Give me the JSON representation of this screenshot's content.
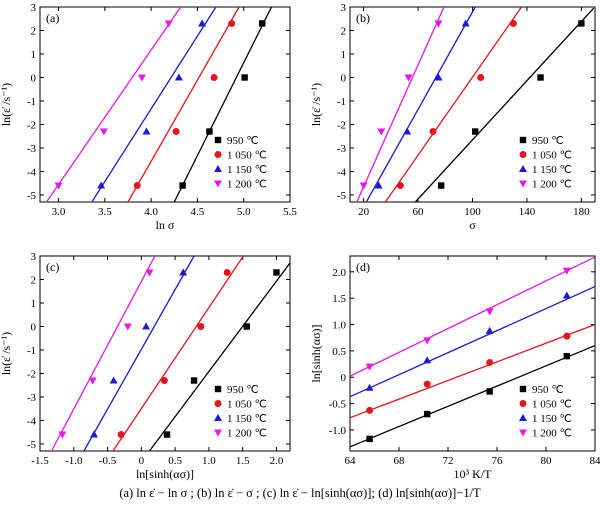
{
  "caption": "(a)  ln ε̇ − ln σ ; (b)  ln ε̇ − σ ; (c)  ln ε̇ − ln[sinh(ασ)]; (d)  ln[sinh(ασ)]−1/T",
  "colors": {
    "950": "#000000",
    "1050": "#e8141c",
    "1150": "#1a1ad6",
    "1200": "#e817e8"
  },
  "chart_data": [
    {
      "panel": "(a)",
      "type": "scatter",
      "xlabel": "ln σ",
      "ylabel": "ln(ε̇ /s⁻¹)",
      "xlim": [
        2.8,
        5.5
      ],
      "ylim": [
        -5.3,
        3.0
      ],
      "xticks": [
        "3.0",
        "3.5",
        "4.0",
        "4.5",
        "5.0",
        "5.5"
      ],
      "xtick_values": [
        3.0,
        3.5,
        4.0,
        4.5,
        5.0,
        5.5
      ],
      "yticks": [
        "-5",
        "-4",
        "-3",
        "-2",
        "-1",
        "0",
        "1",
        "2",
        "3"
      ],
      "ytick_values": [
        -5,
        -4,
        -3,
        -2,
        -1,
        0,
        1,
        2,
        3
      ],
      "legend": "bottom-right",
      "series": [
        {
          "name": "950 ℃",
          "marker": "square",
          "color": "#000000",
          "x": [
            4.34,
            4.63,
            5.01,
            5.2
          ],
          "y": [
            -4.6,
            -2.3,
            0.0,
            2.3
          ],
          "fit": [
            [
              4.25,
              -5.3
            ],
            [
              5.3,
              3.0
            ]
          ]
        },
        {
          "name": "1 050 ℃",
          "marker": "circle",
          "color": "#e8141c",
          "x": [
            3.85,
            4.27,
            4.68,
            4.87
          ],
          "y": [
            -4.6,
            -2.3,
            0.0,
            2.3
          ],
          "fit": [
            [
              3.75,
              -5.3
            ],
            [
              4.95,
              3.0
            ]
          ]
        },
        {
          "name": "1 150 ℃",
          "marker": "triangle-up",
          "color": "#1a1ad6",
          "x": [
            3.46,
            3.95,
            4.3,
            4.55
          ],
          "y": [
            -4.6,
            -2.3,
            0.0,
            2.3
          ],
          "fit": [
            [
              3.36,
              -5.3
            ],
            [
              4.7,
              3.0
            ]
          ]
        },
        {
          "name": "1 200 ℃",
          "marker": "triangle-down",
          "color": "#e817e8",
          "x": [
            3.0,
            3.49,
            3.9,
            4.19
          ],
          "y": [
            -4.6,
            -2.3,
            0.0,
            2.3
          ],
          "fit": [
            [
              2.87,
              -5.3
            ],
            [
              4.32,
              3.0
            ]
          ]
        }
      ]
    },
    {
      "panel": "(b)",
      "type": "scatter",
      "xlabel": "σ",
      "ylabel": "ln(ε̇ /s⁻¹)",
      "xlim": [
        10,
        190
      ],
      "ylim": [
        -5.3,
        3.0
      ],
      "xticks": [
        "20",
        "60",
        "100",
        "140",
        "180"
      ],
      "xtick_values": [
        20,
        60,
        100,
        140,
        180
      ],
      "yticks": [
        "-5",
        "-4",
        "-3",
        "-2",
        "-1",
        "0",
        "1",
        "2",
        "3"
      ],
      "ytick_values": [
        -5,
        -4,
        -3,
        -2,
        -1,
        0,
        1,
        2,
        3
      ],
      "legend": "bottom-right",
      "series": [
        {
          "name": "950 ℃",
          "marker": "square",
          "color": "#000000",
          "x": [
            77,
            102,
            150,
            180
          ],
          "y": [
            -4.6,
            -2.3,
            0.0,
            2.3
          ],
          "fit": [
            [
              58,
              -5.3
            ],
            [
              189,
              2.95
            ]
          ]
        },
        {
          "name": "1 050 ℃",
          "marker": "circle",
          "color": "#e8141c",
          "x": [
            47,
            71,
            106,
            130
          ],
          "y": [
            -4.6,
            -2.3,
            0.0,
            2.3
          ],
          "fit": [
            [
              36,
              -5.3
            ],
            [
              136,
              3.0
            ]
          ]
        },
        {
          "name": "1 150 ℃",
          "marker": "triangle-up",
          "color": "#1a1ad6",
          "x": [
            31,
            52,
            75,
            95
          ],
          "y": [
            -4.6,
            -2.3,
            0.0,
            2.3
          ],
          "fit": [
            [
              22,
              -5.3
            ],
            [
              102,
              3.0
            ]
          ]
        },
        {
          "name": "1 200 ℃",
          "marker": "triangle-down",
          "color": "#e817e8",
          "x": [
            20,
            33,
            53,
            75
          ],
          "y": [
            -4.6,
            -2.3,
            0.0,
            2.3
          ],
          "fit": [
            [
              15,
              -5.3
            ],
            [
              79,
              3.0
            ]
          ]
        }
      ]
    },
    {
      "panel": "(c)",
      "type": "scatter",
      "xlabel": "ln[sinh(ασ)]",
      "ylabel": "ln(ε̇ /s⁻¹)",
      "xlim": [
        -1.5,
        2.2
      ],
      "ylim": [
        -5.3,
        3.0
      ],
      "xticks": [
        "-1.5",
        "-1.0",
        "-0.5",
        "0",
        "0.5",
        "1.0",
        "1.5",
        "2.0"
      ],
      "xtick_values": [
        -1.5,
        -1.0,
        -0.5,
        0.0,
        0.5,
        1.0,
        1.5,
        2.0
      ],
      "yticks": [
        "-5",
        "-4",
        "-3",
        "-2",
        "-1",
        "0",
        "1",
        "2",
        "3"
      ],
      "ytick_values": [
        -5,
        -4,
        -3,
        -2,
        -1,
        0,
        1,
        2,
        3
      ],
      "legend": "bottom-right",
      "series": [
        {
          "name": "950 ℃",
          "marker": "square",
          "color": "#000000",
          "x": [
            0.38,
            0.78,
            1.56,
            2.0
          ],
          "y": [
            -4.6,
            -2.3,
            0.0,
            2.3
          ],
          "fit": [
            [
              0.12,
              -5.3
            ],
            [
              2.2,
              2.7
            ]
          ]
        },
        {
          "name": "1 050 ℃",
          "marker": "circle",
          "color": "#e8141c",
          "x": [
            -0.3,
            0.34,
            0.88,
            1.27
          ],
          "y": [
            -4.6,
            -2.3,
            0.0,
            2.3
          ],
          "fit": [
            [
              -0.42,
              -5.3
            ],
            [
              1.51,
              3.0
            ]
          ]
        },
        {
          "name": "1 150 ℃",
          "marker": "triangle-up",
          "color": "#1a1ad6",
          "x": [
            -0.7,
            -0.41,
            0.07,
            0.62
          ],
          "y": [
            -4.6,
            -2.3,
            0.0,
            2.3
          ],
          "fit": [
            [
              -0.85,
              -5.3
            ],
            [
              0.78,
              3.0
            ]
          ]
        },
        {
          "name": "1 200 ℃",
          "marker": "triangle-down",
          "color": "#e817e8",
          "x": [
            -1.17,
            -0.72,
            -0.2,
            0.12
          ],
          "y": [
            -4.6,
            -2.3,
            0.0,
            2.3
          ],
          "fit": [
            [
              -1.33,
              -5.3
            ],
            [
              0.2,
              3.0
            ]
          ]
        }
      ]
    },
    {
      "panel": "(d)",
      "type": "scatter",
      "xlabel": "10³ K/T",
      "ylabel": "ln[sinh(ασ)]",
      "xlim": [
        64,
        84
      ],
      "ylim": [
        -1.4,
        2.3
      ],
      "xticks": [
        "64",
        "68",
        "72",
        "76",
        "80",
        "84"
      ],
      "xtick_values": [
        64,
        68,
        72,
        76,
        80,
        84
      ],
      "yticks": [
        "-1.0",
        "-0.5",
        "0",
        "0.5",
        "1.0",
        "1.5",
        "2.0"
      ],
      "ytick_values": [
        -1.0,
        -0.5,
        0.0,
        0.5,
        1.0,
        1.5,
        2.0
      ],
      "legend": "bottom-right",
      "series": [
        {
          "name": "950 ℃",
          "marker": "square",
          "color": "#000000",
          "x": [
            65.6,
            70.3,
            75.4,
            81.7
          ],
          "y": [
            -1.17,
            -0.7,
            -0.27,
            0.4
          ],
          "fit": [
            [
              64,
              -1.32
            ],
            [
              84,
              0.6
            ]
          ]
        },
        {
          "name": "1 050 ℃",
          "marker": "circle",
          "color": "#e8141c",
          "x": [
            65.6,
            70.3,
            75.4,
            81.7
          ],
          "y": [
            -0.63,
            -0.13,
            0.28,
            0.78
          ],
          "fit": [
            [
              64,
              -0.77
            ],
            [
              84,
              1.0
            ]
          ]
        },
        {
          "name": "1 150 ℃",
          "marker": "triangle-up",
          "color": "#1a1ad6",
          "x": [
            65.6,
            70.3,
            75.4,
            81.7
          ],
          "y": [
            -0.2,
            0.32,
            0.88,
            1.55
          ],
          "fit": [
            [
              64,
              -0.37
            ],
            [
              84,
              1.72
            ]
          ]
        },
        {
          "name": "1 200 ℃",
          "marker": "triangle-down",
          "color": "#e817e8",
          "x": [
            65.6,
            70.3,
            75.4,
            81.7
          ],
          "y": [
            0.2,
            0.7,
            1.25,
            2.02
          ],
          "fit": [
            [
              64,
              0.02
            ],
            [
              84,
              2.28
            ]
          ]
        }
      ]
    }
  ]
}
